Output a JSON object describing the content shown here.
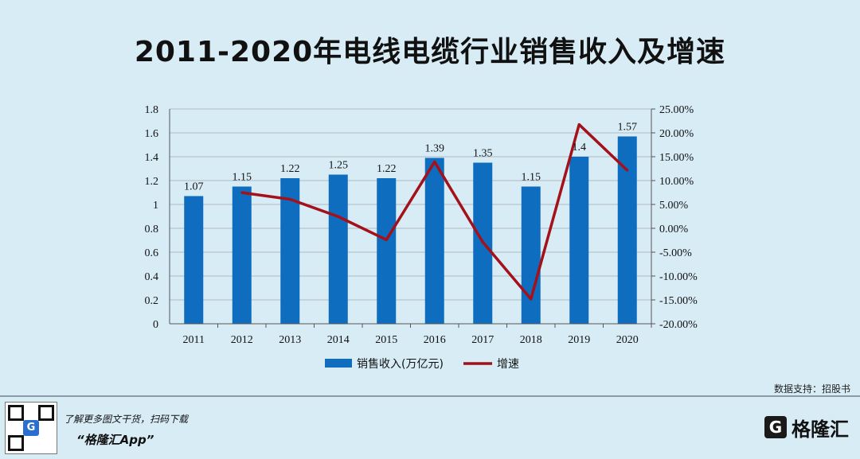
{
  "title": "2011-2020年电线电缆行业销售收入及增速",
  "chart_data": {
    "type": "bar",
    "categories": [
      "2011",
      "2012",
      "2013",
      "2014",
      "2015",
      "2016",
      "2017",
      "2018",
      "2019",
      "2020"
    ],
    "series": [
      {
        "name": "销售收入(万亿元)",
        "chart": "bar",
        "axis": "left",
        "color": "#0e6dbf",
        "values": [
          1.07,
          1.15,
          1.22,
          1.25,
          1.22,
          1.39,
          1.35,
          1.15,
          1.4,
          1.57
        ],
        "labels": [
          "1.07",
          "1.15",
          "1.22",
          "1.25",
          "1.22",
          "1.39",
          "1.35",
          "1.15",
          "1.4",
          "1.57"
        ]
      },
      {
        "name": "增速",
        "chart": "line",
        "axis": "right",
        "color": "#a3111a",
        "values": [
          null,
          7.48,
          6.09,
          2.46,
          -2.4,
          13.93,
          -2.88,
          -14.81,
          21.74,
          12.14
        ]
      }
    ],
    "y_left": {
      "ylim": [
        0,
        1.8
      ],
      "ticks": [
        "0",
        "0.2",
        "0.4",
        "0.6",
        "0.8",
        "1",
        "1.2",
        "1.4",
        "1.6",
        "1.8"
      ]
    },
    "y_right": {
      "ylim": [
        -20,
        25
      ],
      "ticks": [
        "-20.00%",
        "-15.00%",
        "-10.00%",
        "-5.00%",
        "0.00%",
        "5.00%",
        "10.00%",
        "15.00%",
        "20.00%",
        "25.00%"
      ]
    },
    "legend": "bottom",
    "grid": true
  },
  "source": "数据支持：招股书",
  "footer": {
    "promo_line": "了解更多图文干货，扫码下载",
    "app_name": "“格隆汇App”",
    "brand": "格隆汇"
  },
  "colors": {
    "background": "#d8ecf6",
    "bar": "#0e6dbf",
    "line": "#a3111a",
    "grid": "#b0b8c0"
  }
}
